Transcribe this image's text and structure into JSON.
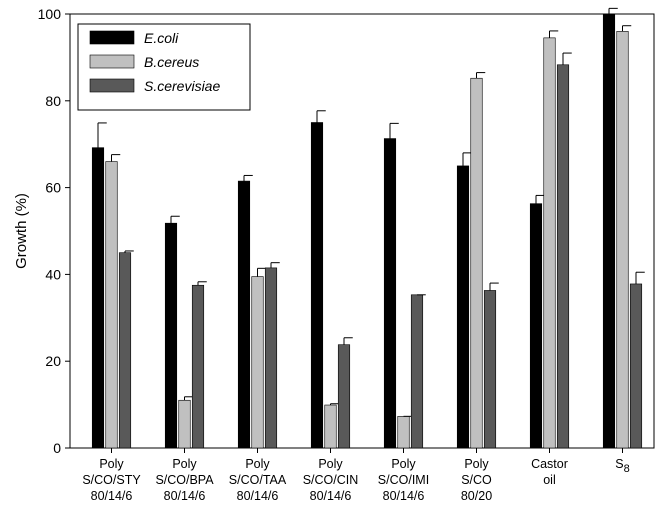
{
  "chart_data": {
    "type": "bar",
    "title": "",
    "xlabel": "",
    "ylabel": "Growth (%)",
    "ylim": [
      0,
      100
    ],
    "yticks": [
      "0",
      "20",
      "40",
      "60",
      "80",
      "100"
    ],
    "legend_position": "top-left",
    "grid": false,
    "categories": [
      [
        "Poly",
        "S/CO/STY",
        "80/14/6"
      ],
      [
        "Poly",
        "S/CO/BPA",
        "80/14/6"
      ],
      [
        "Poly",
        "S/CO/TAA",
        "80/14/6"
      ],
      [
        "Poly",
        "S/CO/CIN",
        "80/14/6"
      ],
      [
        "Poly",
        "S/CO/IMI",
        "80/14/6"
      ],
      [
        "Poly",
        "S/CO",
        "80/20"
      ],
      [
        "Castor",
        "oil"
      ],
      [
        "S8"
      ]
    ],
    "series": [
      {
        "name": "E.coli",
        "color": "#000000",
        "values": [
          69.2,
          51.8,
          61.5,
          75.0,
          71.3,
          65.0,
          56.3,
          100.0
        ],
        "errors": [
          5.7,
          1.6,
          1.3,
          2.7,
          3.5,
          3.0,
          1.9,
          1.3
        ]
      },
      {
        "name": "B.cereus",
        "color": "#c0c0c0",
        "values": [
          66.0,
          11.0,
          39.5,
          9.9,
          7.3,
          85.2,
          94.5,
          96.0
        ],
        "errors": [
          1.6,
          0.8,
          1.9,
          0.3,
          0.0,
          1.3,
          1.6,
          1.3
        ]
      },
      {
        "name": "S.cerevisiae",
        "color": "#595959",
        "values": [
          45.0,
          37.5,
          41.5,
          23.8,
          35.3,
          36.3,
          88.3,
          37.8
        ],
        "errors": [
          0.4,
          0.8,
          1.2,
          1.6,
          0.0,
          1.7,
          2.7,
          2.7
        ]
      }
    ]
  }
}
